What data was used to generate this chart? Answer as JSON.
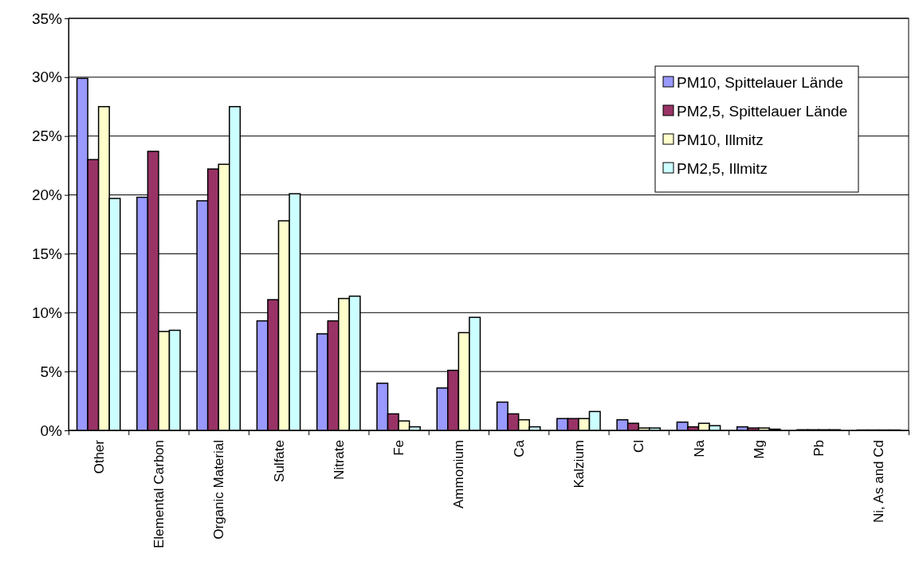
{
  "chart_data": {
    "type": "bar",
    "categories": [
      "Other",
      "Elemental Carbon",
      "Organic Material",
      "Sulfate",
      "Nitrate",
      "Fe",
      "Ammonium",
      "Ca",
      "Kalzium",
      "Cl",
      "Na",
      "Mg",
      "Pb",
      "Ni, As and Cd"
    ],
    "series": [
      {
        "name": "PM10, Spittelauer Lände",
        "color": "#9999ff",
        "values": [
          29.9,
          19.8,
          19.5,
          9.3,
          8.2,
          4.0,
          3.6,
          2.4,
          1.0,
          0.9,
          0.7,
          0.3,
          0.05,
          0.03
        ]
      },
      {
        "name": "PM2,5, Spittelauer Lände",
        "color": "#993366",
        "values": [
          23.0,
          23.7,
          22.2,
          11.1,
          9.3,
          1.4,
          5.1,
          1.4,
          1.0,
          0.6,
          0.3,
          0.2,
          0.05,
          0.03
        ]
      },
      {
        "name": "PM10, Illmitz",
        "color": "#ffffcc",
        "values": [
          27.5,
          8.4,
          22.6,
          17.8,
          11.2,
          0.8,
          8.3,
          0.9,
          1.0,
          0.2,
          0.6,
          0.2,
          0.05,
          0.03
        ]
      },
      {
        "name": "PM2,5, Illmitz",
        "color": "#ccffff",
        "values": [
          19.7,
          8.5,
          27.5,
          20.1,
          11.4,
          0.3,
          9.6,
          0.3,
          1.6,
          0.2,
          0.4,
          0.1,
          0.05,
          0.03
        ]
      }
    ],
    "ylim": [
      0,
      35
    ],
    "yticks": [
      {
        "value": 0,
        "label": "0%"
      },
      {
        "value": 5,
        "label": "5%"
      },
      {
        "value": 10,
        "label": "10%"
      },
      {
        "value": 15,
        "label": "15%"
      },
      {
        "value": 20,
        "label": "20%"
      },
      {
        "value": 25,
        "label": "25%"
      },
      {
        "value": 30,
        "label": "30%"
      },
      {
        "value": 35,
        "label": "35%"
      }
    ],
    "grid": "y",
    "legend": "top right"
  }
}
